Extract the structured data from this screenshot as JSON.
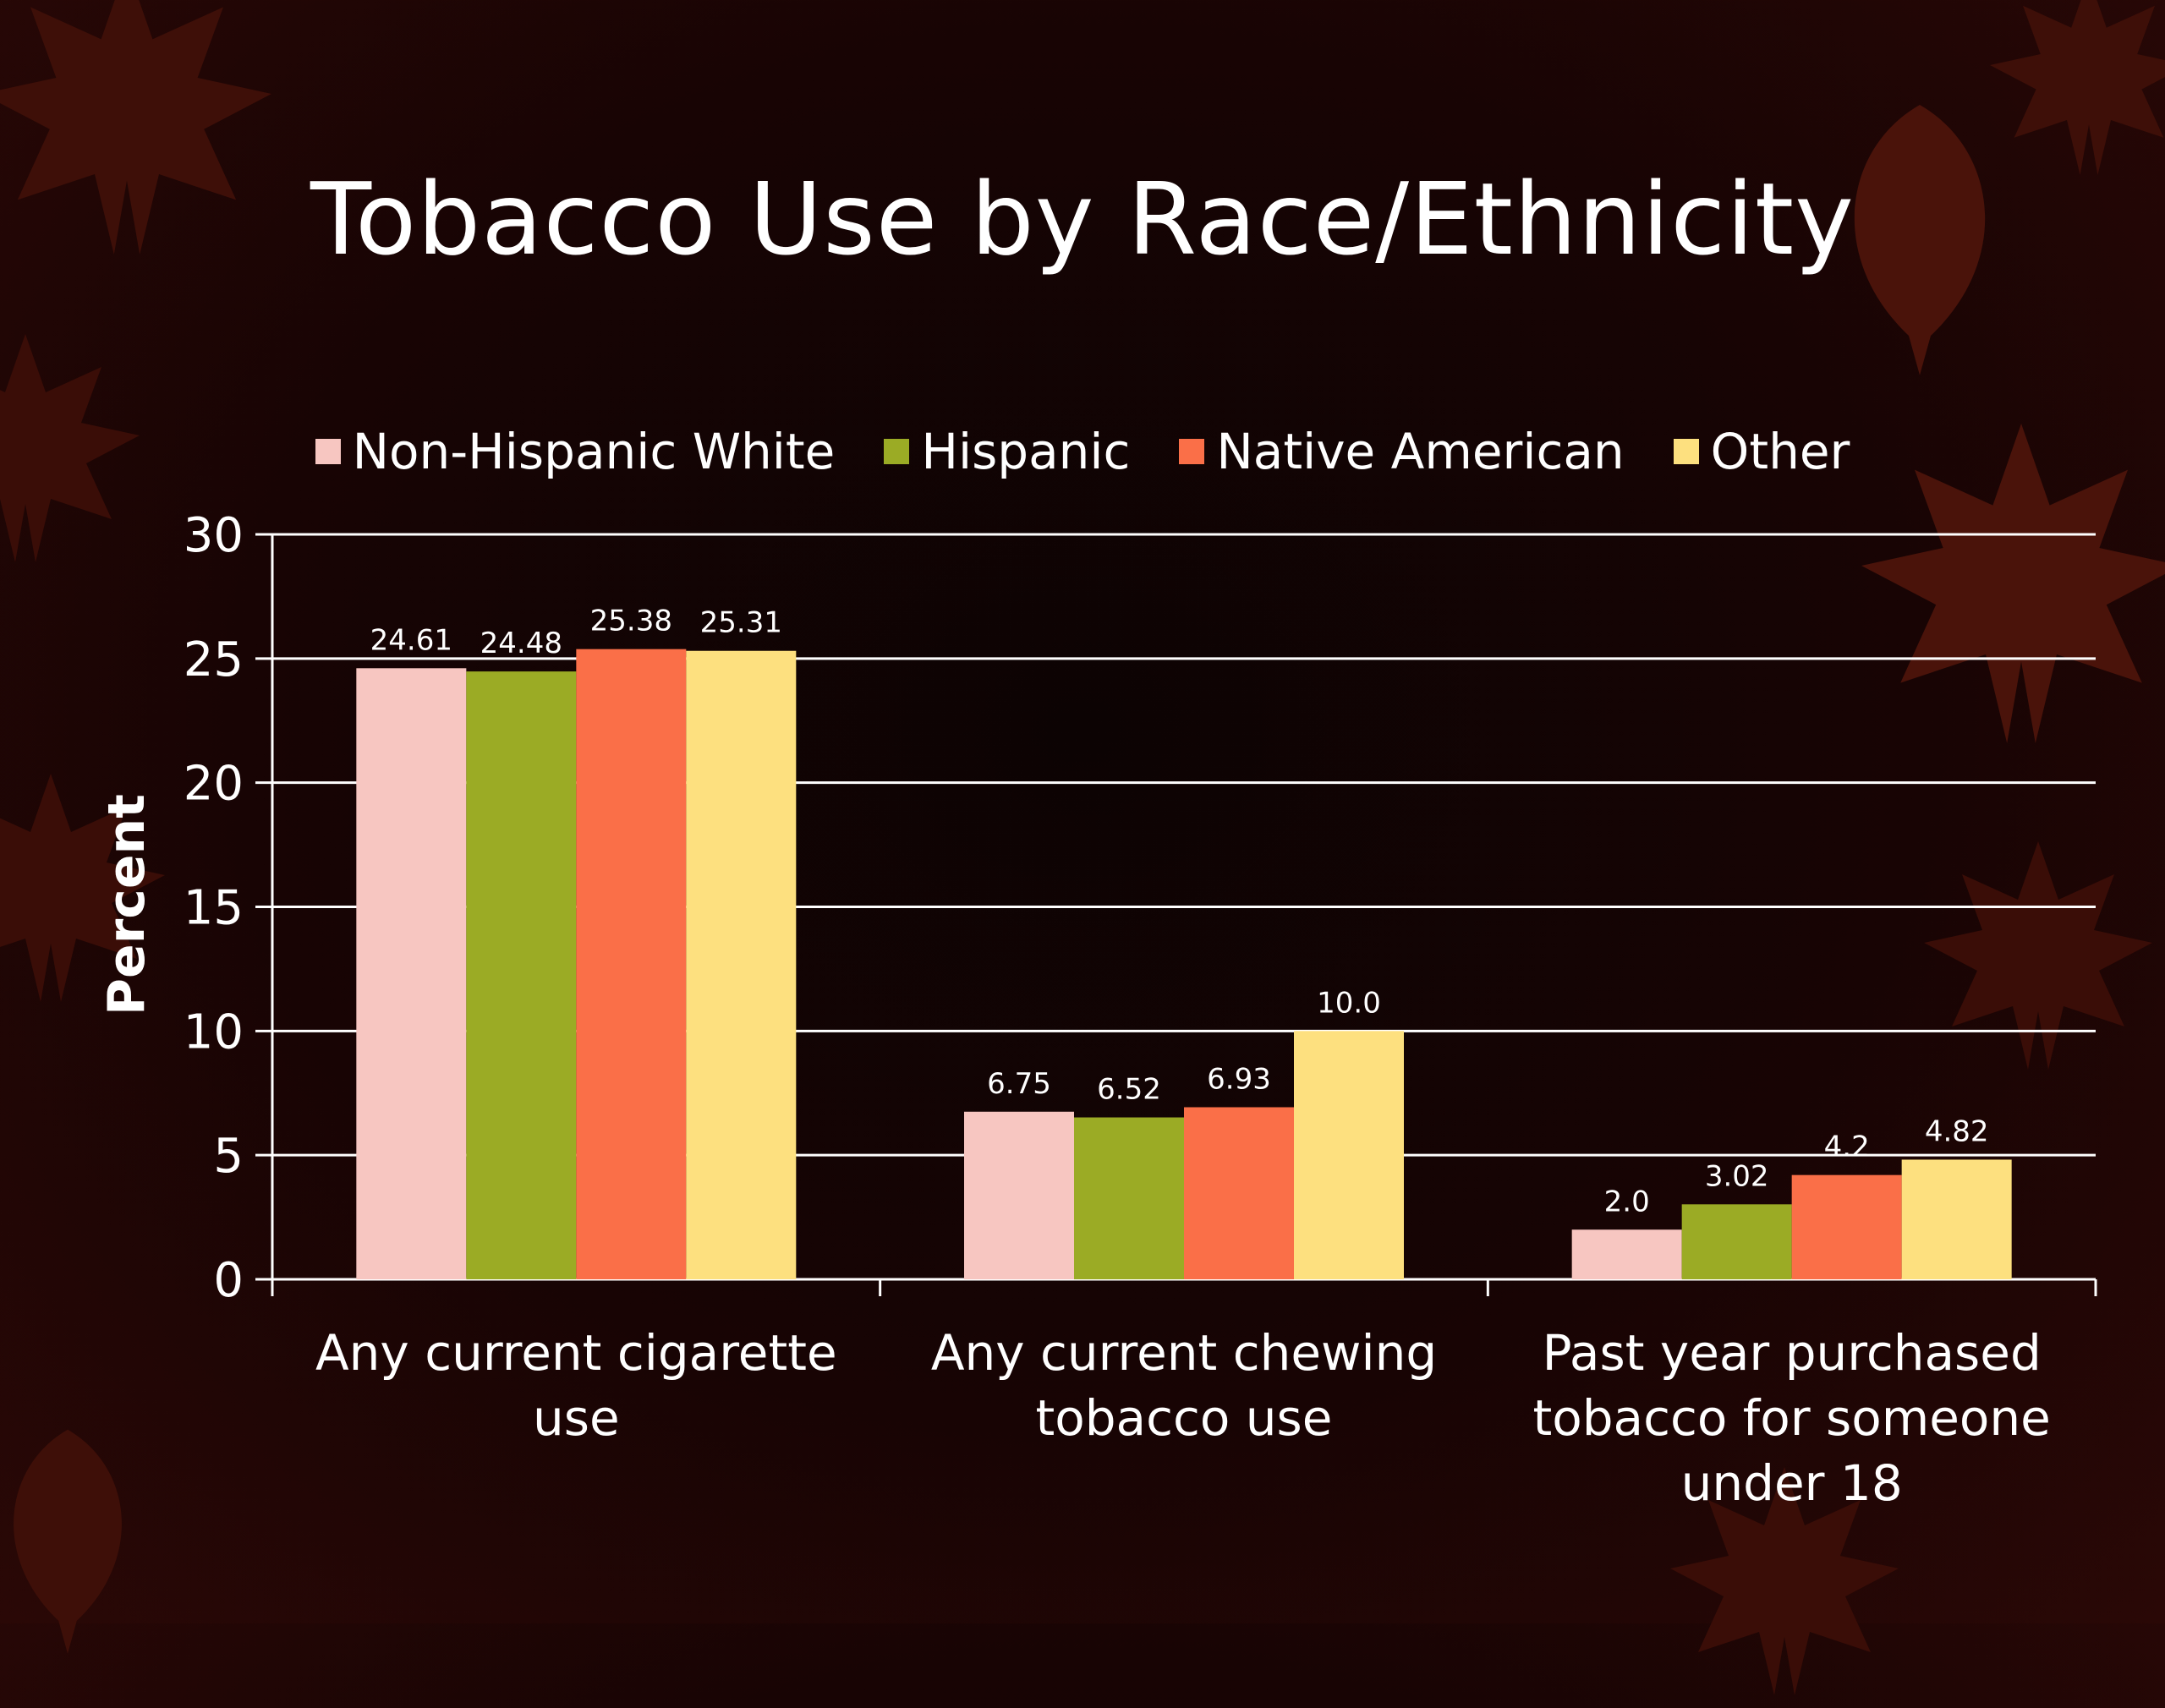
{
  "slide": {
    "title": "Tobacco Use by Race/Ethnicity",
    "background_color": "#160404",
    "leaf_color": "#4a130a"
  },
  "chart_data": {
    "type": "bar",
    "title": "Tobacco Use by Race/Ethnicity",
    "xlabel": "",
    "ylabel": "Percent",
    "ylim": [
      0,
      30
    ],
    "yticks": [
      "0",
      "5",
      "10",
      "15",
      "20",
      "25",
      "30"
    ],
    "grid": true,
    "legend_position": "top",
    "categories": [
      [
        "Any current cigarette",
        "use"
      ],
      [
        "Any current chewing",
        "tobacco use"
      ],
      [
        "Past year purchased",
        "tobacco for someone",
        "under 18"
      ]
    ],
    "series": [
      {
        "name": "Non-Hispanic White",
        "color": "#f7c6c1",
        "values": [
          24.61,
          6.75,
          2.0
        ],
        "labels": [
          "24.61",
          "6.75",
          "2.0"
        ]
      },
      {
        "name": "Hispanic",
        "color": "#9bab25",
        "values": [
          24.48,
          6.52,
          3.02
        ],
        "labels": [
          "24.48",
          "6.52",
          "3.02"
        ]
      },
      {
        "name": "Native American",
        "color": "#fa6f48",
        "values": [
          25.38,
          6.93,
          4.2
        ],
        "labels": [
          "25.38",
          "6.93",
          "4.2"
        ]
      },
      {
        "name": "Other",
        "color": "#fde07f",
        "values": [
          25.31,
          10.0,
          4.82
        ],
        "labels": [
          "25.31",
          "10.0",
          "4.82"
        ]
      }
    ]
  }
}
